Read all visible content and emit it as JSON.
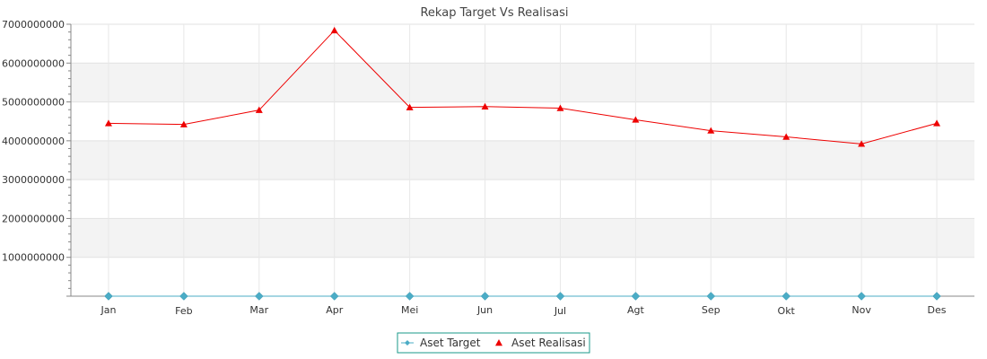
{
  "chart_data": {
    "type": "line",
    "title": "Rekap Target Vs Realisasi",
    "xlabel": "",
    "ylabel": "",
    "categories": [
      "Jan",
      "Feb",
      "Mar",
      "Apr",
      "Mei",
      "Jun",
      "Jul",
      "Agt",
      "Sep",
      "Okt",
      "Nov",
      "Des"
    ],
    "ylim": [
      0,
      7000000000
    ],
    "yticks": [
      "1000000000",
      "2000000000",
      "3000000000",
      "4000000000",
      "5000000000",
      "6000000000",
      "7000000000"
    ],
    "grid": true,
    "legend": "bottom-center",
    "series": [
      {
        "name": "Aset Target",
        "color": "#4bacc6",
        "marker": "diamond",
        "values": [
          0,
          0,
          0,
          0,
          0,
          0,
          0,
          0,
          0,
          0,
          0,
          0
        ]
      },
      {
        "name": "Aset Realisasi",
        "color": "#ee0000",
        "marker": "triangle",
        "values": [
          4450000000,
          4420000000,
          4790000000,
          6840000000,
          4860000000,
          4880000000,
          4840000000,
          4540000000,
          4260000000,
          4100000000,
          3920000000,
          4450000000
        ]
      }
    ]
  }
}
